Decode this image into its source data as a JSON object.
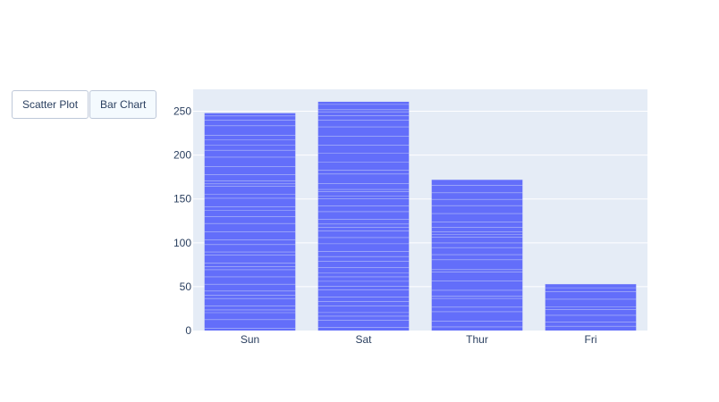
{
  "menu": {
    "buttons": [
      {
        "label": "Scatter Plot",
        "active": false
      },
      {
        "label": "Bar Chart",
        "active": true
      }
    ]
  },
  "chart_data": {
    "type": "bar",
    "categories": [
      "Sun",
      "Sat",
      "Thur",
      "Fri"
    ],
    "values": [
      248,
      261,
      172,
      53
    ],
    "ylim": [
      0,
      275
    ],
    "yticks": [
      0,
      50,
      100,
      150,
      200,
      250
    ],
    "title": "",
    "xlabel": "",
    "ylabel": "",
    "grid": true,
    "bar_color": "#636efa",
    "plot_background": "#e5ecf6"
  }
}
